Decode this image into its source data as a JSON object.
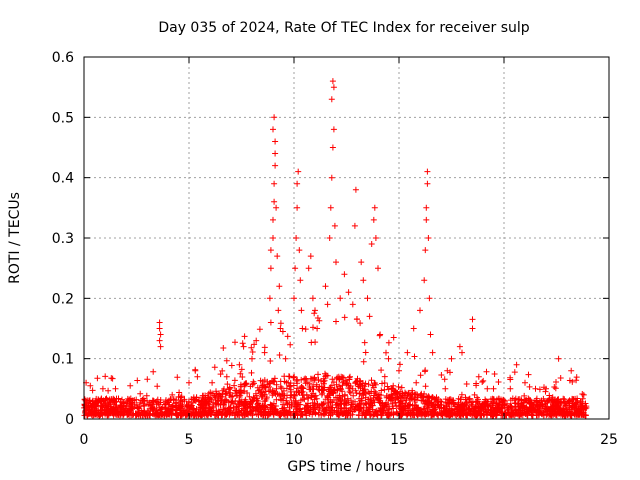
{
  "chart_data": {
    "type": "scatter",
    "title": "Day 035 of 2024, Rate Of TEC Index for receiver sulp",
    "xlabel": "GPS time / hours",
    "ylabel": "ROTI / TECUs",
    "xlim": [
      0,
      25
    ],
    "ylim": [
      0,
      0.6
    ],
    "x_ticks": [
      0,
      5,
      10,
      15,
      20,
      25
    ],
    "x_tick_labels": [
      "0",
      "5",
      "10",
      "15",
      "20",
      "25"
    ],
    "y_ticks": [
      0,
      0.1,
      0.2,
      0.3,
      0.4,
      0.5,
      0.6
    ],
    "y_tick_labels": [
      "0",
      "0.1",
      "0.2",
      "0.3",
      "0.4",
      "0.5",
      "0.6"
    ],
    "grid": true,
    "marker": "plus",
    "color": "#ff0000",
    "series": [
      {
        "name": "ROTI",
        "points": [
          [
            0.1,
            0.06
          ],
          [
            0.3,
            0.055
          ],
          [
            0.9,
            0.05
          ],
          [
            1.5,
            0.05
          ],
          [
            2.2,
            0.055
          ],
          [
            3.0,
            0.03
          ],
          [
            3.6,
            0.16
          ],
          [
            3.6,
            0.15
          ],
          [
            3.65,
            0.14
          ],
          [
            3.6,
            0.13
          ],
          [
            3.65,
            0.12
          ],
          [
            4.2,
            0.04
          ],
          [
            5.0,
            0.06
          ],
          [
            5.3,
            0.08
          ],
          [
            5.4,
            0.07
          ],
          [
            6.1,
            0.06
          ],
          [
            6.8,
            0.07
          ],
          [
            7.4,
            0.09
          ],
          [
            7.6,
            0.12
          ],
          [
            8.0,
            0.1
          ],
          [
            8.2,
            0.13
          ],
          [
            8.6,
            0.11
          ],
          [
            8.85,
            0.2
          ],
          [
            8.9,
            0.25
          ],
          [
            8.9,
            0.28
          ],
          [
            9.0,
            0.3
          ],
          [
            9.0,
            0.33
          ],
          [
            9.05,
            0.36
          ],
          [
            9.05,
            0.39
          ],
          [
            9.1,
            0.42
          ],
          [
            9.1,
            0.44
          ],
          [
            9.0,
            0.48
          ],
          [
            9.05,
            0.5
          ],
          [
            9.1,
            0.46
          ],
          [
            9.15,
            0.35
          ],
          [
            9.2,
            0.27
          ],
          [
            9.25,
            0.18
          ],
          [
            9.3,
            0.22
          ],
          [
            9.35,
            0.15
          ],
          [
            8.9,
            0.16
          ],
          [
            9.6,
            0.1
          ],
          [
            10.0,
            0.2
          ],
          [
            10.05,
            0.25
          ],
          [
            10.1,
            0.3
          ],
          [
            10.15,
            0.35
          ],
          [
            10.2,
            0.41
          ],
          [
            10.15,
            0.39
          ],
          [
            10.25,
            0.28
          ],
          [
            10.3,
            0.23
          ],
          [
            10.35,
            0.18
          ],
          [
            10.4,
            0.15
          ],
          [
            10.7,
            0.25
          ],
          [
            10.8,
            0.27
          ],
          [
            10.9,
            0.2
          ],
          [
            11.0,
            0.18
          ],
          [
            11.1,
            0.15
          ],
          [
            11.5,
            0.22
          ],
          [
            11.6,
            0.19
          ],
          [
            11.7,
            0.3
          ],
          [
            11.75,
            0.35
          ],
          [
            11.8,
            0.4
          ],
          [
            11.85,
            0.45
          ],
          [
            11.9,
            0.48
          ],
          [
            11.8,
            0.53
          ],
          [
            11.85,
            0.56
          ],
          [
            11.9,
            0.55
          ],
          [
            11.95,
            0.32
          ],
          [
            12.0,
            0.26
          ],
          [
            12.2,
            0.2
          ],
          [
            12.4,
            0.24
          ],
          [
            12.6,
            0.21
          ],
          [
            12.8,
            0.19
          ],
          [
            12.9,
            0.32
          ],
          [
            12.95,
            0.38
          ],
          [
            13.2,
            0.26
          ],
          [
            13.3,
            0.23
          ],
          [
            13.5,
            0.2
          ],
          [
            13.6,
            0.17
          ],
          [
            13.7,
            0.29
          ],
          [
            13.8,
            0.33
          ],
          [
            13.85,
            0.35
          ],
          [
            13.9,
            0.3
          ],
          [
            14.0,
            0.25
          ],
          [
            14.1,
            0.14
          ],
          [
            14.5,
            0.1
          ],
          [
            15.0,
            0.08
          ],
          [
            15.4,
            0.11
          ],
          [
            15.7,
            0.15
          ],
          [
            16.0,
            0.18
          ],
          [
            16.2,
            0.23
          ],
          [
            16.25,
            0.28
          ],
          [
            16.3,
            0.33
          ],
          [
            16.3,
            0.35
          ],
          [
            16.35,
            0.39
          ],
          [
            16.35,
            0.41
          ],
          [
            16.4,
            0.3
          ],
          [
            16.45,
            0.2
          ],
          [
            16.5,
            0.14
          ],
          [
            16.6,
            0.11
          ],
          [
            17.3,
            0.08
          ],
          [
            17.5,
            0.1
          ],
          [
            17.9,
            0.12
          ],
          [
            18.0,
            0.11
          ],
          [
            18.5,
            0.15
          ],
          [
            18.5,
            0.165
          ],
          [
            18.8,
            0.07
          ],
          [
            19.5,
            0.05
          ],
          [
            20.3,
            0.05
          ],
          [
            20.6,
            0.09
          ],
          [
            21.0,
            0.06
          ],
          [
            21.5,
            0.05
          ],
          [
            22.0,
            0.05
          ],
          [
            22.6,
            0.1
          ],
          [
            23.2,
            0.08
          ],
          [
            23.8,
            0.04
          ]
        ]
      }
    ]
  }
}
